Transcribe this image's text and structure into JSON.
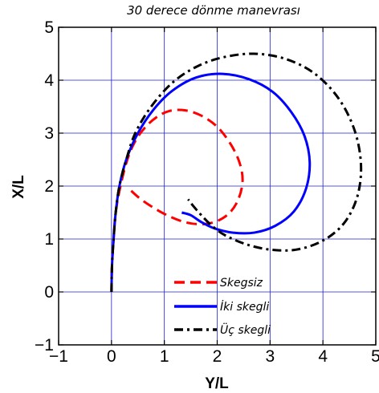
{
  "chart_data": {
    "type": "line",
    "title": "30 derece dönme manevrası",
    "xlabel": "Y/L",
    "ylabel": "X/L",
    "xlim": [
      -1,
      5
    ],
    "ylim": [
      -1,
      5
    ],
    "xticks": [
      "−1",
      "0",
      "1",
      "2",
      "3",
      "4",
      "5"
    ],
    "yticks": [
      "−1",
      "0",
      "1",
      "2",
      "3",
      "4",
      "5"
    ],
    "grid": true,
    "legend_position": "bottom-right",
    "series": [
      {
        "name": "Skegsiz",
        "color": "#ff0000",
        "dash": "dashed",
        "points": [
          [
            0,
            0
          ],
          [
            0.01,
            0.5
          ],
          [
            0.04,
            1.0
          ],
          [
            0.08,
            1.5
          ],
          [
            0.17,
            2.0
          ],
          [
            0.3,
            2.5
          ],
          [
            0.45,
            2.85
          ],
          [
            0.63,
            3.1
          ],
          [
            0.85,
            3.3
          ],
          [
            1.1,
            3.42
          ],
          [
            1.4,
            3.43
          ],
          [
            1.7,
            3.33
          ],
          [
            2.0,
            3.12
          ],
          [
            2.25,
            2.8
          ],
          [
            2.42,
            2.45
          ],
          [
            2.48,
            2.1
          ],
          [
            2.4,
            1.75
          ],
          [
            2.22,
            1.48
          ],
          [
            1.95,
            1.32
          ],
          [
            1.65,
            1.28
          ],
          [
            1.35,
            1.33
          ],
          [
            1.05,
            1.45
          ],
          [
            0.78,
            1.6
          ],
          [
            0.52,
            1.78
          ],
          [
            0.3,
            1.98
          ]
        ]
      },
      {
        "name": "İki skegli",
        "color": "#0000ff",
        "dash": "solid",
        "points": [
          [
            0,
            0
          ],
          [
            0.01,
            0.5
          ],
          [
            0.04,
            1.0
          ],
          [
            0.08,
            1.5
          ],
          [
            0.15,
            2.0
          ],
          [
            0.28,
            2.5
          ],
          [
            0.5,
            3.0
          ],
          [
            0.8,
            3.45
          ],
          [
            1.15,
            3.8
          ],
          [
            1.6,
            4.05
          ],
          [
            2.1,
            4.12
          ],
          [
            2.6,
            4.02
          ],
          [
            3.05,
            3.78
          ],
          [
            3.4,
            3.4
          ],
          [
            3.65,
            2.95
          ],
          [
            3.75,
            2.45
          ],
          [
            3.68,
            1.95
          ],
          [
            3.45,
            1.52
          ],
          [
            3.1,
            1.25
          ],
          [
            2.7,
            1.12
          ],
          [
            2.3,
            1.12
          ],
          [
            1.95,
            1.2
          ],
          [
            1.7,
            1.32
          ],
          [
            1.5,
            1.45
          ],
          [
            1.33,
            1.5
          ]
        ]
      },
      {
        "name": "Üç skegli",
        "color": "#000000",
        "dash": "dashdot",
        "points": [
          [
            0,
            0
          ],
          [
            0.01,
            0.5
          ],
          [
            0.04,
            1.0
          ],
          [
            0.08,
            1.5
          ],
          [
            0.15,
            2.0
          ],
          [
            0.28,
            2.5
          ],
          [
            0.45,
            3.0
          ],
          [
            0.75,
            3.5
          ],
          [
            1.15,
            3.95
          ],
          [
            1.6,
            4.25
          ],
          [
            2.1,
            4.43
          ],
          [
            2.7,
            4.5
          ],
          [
            3.3,
            4.4
          ],
          [
            3.85,
            4.12
          ],
          [
            4.3,
            3.65
          ],
          [
            4.6,
            3.05
          ],
          [
            4.72,
            2.4
          ],
          [
            4.65,
            1.8
          ],
          [
            4.4,
            1.3
          ],
          [
            4.0,
            0.97
          ],
          [
            3.5,
            0.8
          ],
          [
            3.0,
            0.8
          ],
          [
            2.55,
            0.9
          ],
          [
            2.15,
            1.07
          ],
          [
            1.9,
            1.25
          ],
          [
            1.7,
            1.45
          ],
          [
            1.55,
            1.62
          ],
          [
            1.45,
            1.75
          ]
        ]
      }
    ]
  }
}
